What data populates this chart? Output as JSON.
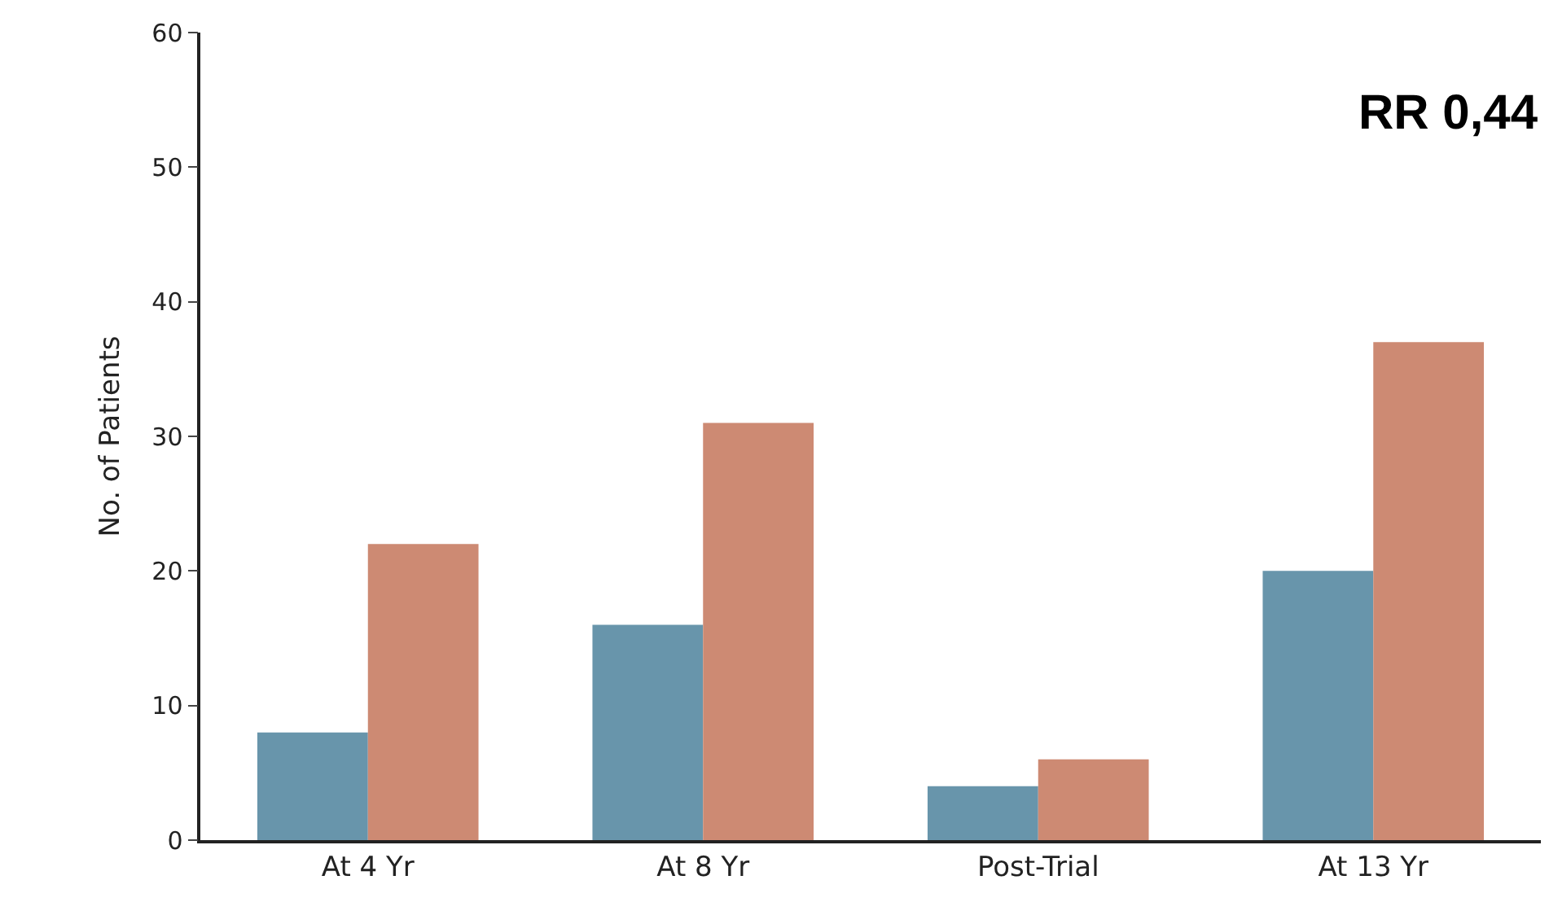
{
  "chart_data": {
    "type": "bar",
    "ylabel": "No. of Patients",
    "categories": [
      "At 4 Yr",
      "At 8 Yr",
      "Post-Trial",
      "At 13 Yr"
    ],
    "series": [
      {
        "color": "#6895ab",
        "values": [
          8,
          16,
          4,
          20
        ]
      },
      {
        "color": "#cd8a73",
        "values": [
          22,
          31,
          6,
          37
        ]
      }
    ],
    "ylim": [
      0,
      60
    ],
    "yticks": [
      0,
      10,
      20,
      30,
      40,
      50,
      60
    ],
    "annotations": [
      "RR 0,44"
    ]
  }
}
